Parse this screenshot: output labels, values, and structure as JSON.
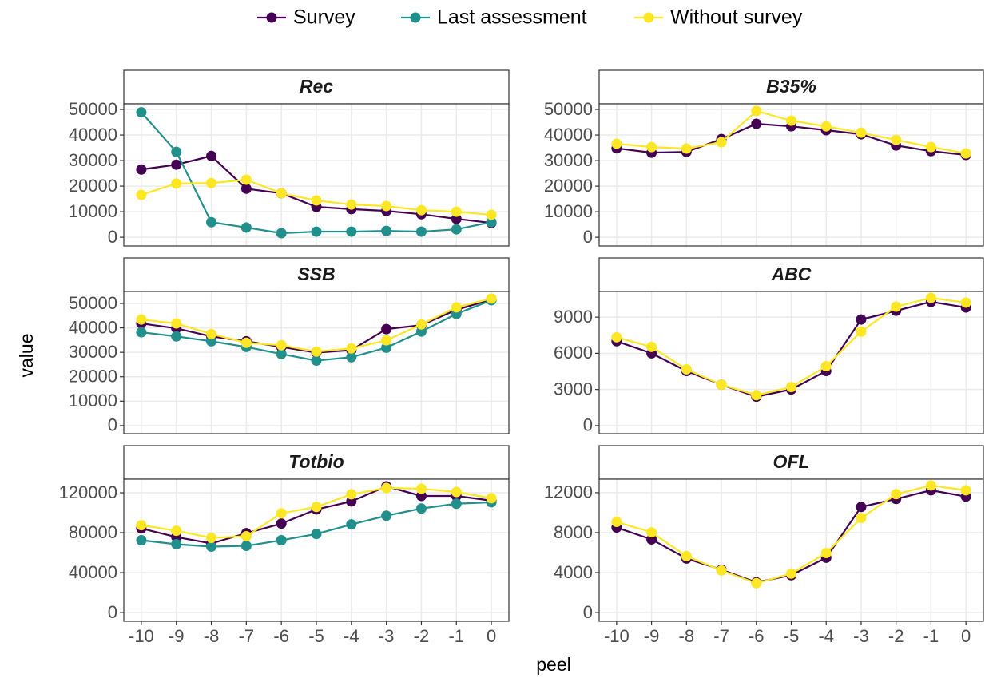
{
  "xlabel": "peel",
  "ylabel": "value",
  "chart_data": [
    {
      "type": "line",
      "title": "Rec",
      "x": [
        -10,
        -9,
        -8,
        -7,
        -6,
        -5,
        -4,
        -3,
        -2,
        -1,
        0
      ],
      "xlim": [
        -10.5,
        0.5
      ],
      "xticks": [
        -10,
        -9,
        -8,
        -7,
        -6,
        -5,
        -4,
        -3,
        -2,
        -1,
        0
      ],
      "ylim": [
        -3400,
        52200
      ],
      "yticks": [
        0,
        10000,
        20000,
        30000,
        40000,
        50000
      ],
      "grid": true,
      "series": [
        {
          "name": "Survey",
          "color": "#440154",
          "values": [
            26500,
            28400,
            31800,
            19000,
            17200,
            11900,
            11000,
            10300,
            9000,
            7200,
            5600
          ]
        },
        {
          "name": "Last assessment",
          "color": "#21908C",
          "values": [
            48900,
            33400,
            5900,
            3800,
            1600,
            2200,
            2200,
            2500,
            2200,
            3100,
            5900
          ]
        },
        {
          "name": "Without survey",
          "color": "#FDE725",
          "values": [
            16600,
            21000,
            21200,
            22500,
            17200,
            14400,
            12800,
            12200,
            10600,
            10000,
            8800
          ]
        }
      ]
    },
    {
      "type": "line",
      "title": "B35%",
      "x": [
        -10,
        -9,
        -8,
        -7,
        -6,
        -5,
        -4,
        -3,
        -2,
        -1,
        0
      ],
      "xlim": [
        -10.5,
        0.5
      ],
      "xticks": [
        -10,
        -9,
        -8,
        -7,
        -6,
        -5,
        -4,
        -3,
        -2,
        -1,
        0
      ],
      "ylim": [
        -3400,
        52200
      ],
      "yticks": [
        0,
        10000,
        20000,
        30000,
        40000,
        50000
      ],
      "grid": true,
      "series": [
        {
          "name": "Survey",
          "color": "#440154",
          "values": [
            34800,
            33100,
            33400,
            38400,
            44400,
            43400,
            41900,
            40300,
            35900,
            33700,
            32200
          ]
        },
        {
          "name": "Without survey",
          "color": "#FDE725",
          "values": [
            36600,
            35300,
            34700,
            37200,
            49400,
            45600,
            43400,
            40900,
            38100,
            35300,
            32800
          ]
        }
      ]
    },
    {
      "type": "line",
      "title": "SSB",
      "x": [
        -10,
        -9,
        -8,
        -7,
        -6,
        -5,
        -4,
        -3,
        -2,
        -1,
        0
      ],
      "xlim": [
        -10.5,
        0.5
      ],
      "xticks": [
        -10,
        -9,
        -8,
        -7,
        -6,
        -5,
        -4,
        -3,
        -2,
        -1,
        0
      ],
      "ylim": [
        -3300,
        54900
      ],
      "yticks": [
        0,
        10000,
        20000,
        30000,
        40000,
        50000
      ],
      "grid": true,
      "series": [
        {
          "name": "Survey",
          "color": "#440154",
          "values": [
            41800,
            39800,
            36500,
            34500,
            32200,
            29900,
            30900,
            39500,
            41100,
            47400,
            51600
          ]
        },
        {
          "name": "Last assessment",
          "color": "#21908C",
          "values": [
            38200,
            36500,
            34500,
            32200,
            29300,
            26600,
            28000,
            31900,
            38500,
            45700,
            51300
          ]
        },
        {
          "name": "Without survey",
          "color": "#FDE725",
          "values": [
            43400,
            41800,
            37500,
            33900,
            32900,
            30300,
            31600,
            34900,
            41400,
            48400,
            52000
          ]
        }
      ]
    },
    {
      "type": "line",
      "title": "ABC",
      "x": [
        -10,
        -9,
        -8,
        -7,
        -6,
        -5,
        -4,
        -3,
        -2,
        -1,
        0
      ],
      "xlim": [
        -10.5,
        0.5
      ],
      "xticks": [
        -10,
        -9,
        -8,
        -7,
        -6,
        -5,
        -4,
        -3,
        -2,
        -1,
        0
      ],
      "ylim": [
        -670,
        11130
      ],
      "yticks": [
        0,
        3000,
        6000,
        9000
      ],
      "grid": true,
      "series": [
        {
          "name": "Survey",
          "color": "#440154",
          "values": [
            7000,
            6000,
            4530,
            3400,
            2400,
            3000,
            4530,
            8800,
            9530,
            10270,
            9800
          ]
        },
        {
          "name": "Without survey",
          "color": "#FDE725",
          "values": [
            7330,
            6530,
            4670,
            3400,
            2530,
            3200,
            4930,
            7800,
            9870,
            10600,
            10200
          ]
        }
      ]
    },
    {
      "type": "line",
      "title": "Totbio",
      "x": [
        -10,
        -9,
        -8,
        -7,
        -6,
        -5,
        -4,
        -3,
        -2,
        -1,
        0
      ],
      "xlim": [
        -10.5,
        0.5
      ],
      "xticks": [
        -10,
        -9,
        -8,
        -7,
        -6,
        -5,
        -4,
        -3,
        -2,
        -1,
        0
      ],
      "ylim": [
        -8750,
        133600
      ],
      "yticks": [
        0,
        40000,
        80000,
        120000
      ],
      "grid": true,
      "series": [
        {
          "name": "Survey",
          "color": "#440154",
          "values": [
            84300,
            75600,
            69200,
            79500,
            89100,
            103300,
            111300,
            126400,
            116800,
            116800,
            112100
          ]
        },
        {
          "name": "Last assessment",
          "color": "#21908C",
          "values": [
            72400,
            68400,
            66000,
            66800,
            72400,
            78700,
            88300,
            97000,
            104200,
            109000,
            110500
          ]
        },
        {
          "name": "Without survey",
          "color": "#FDE725",
          "values": [
            87500,
            81900,
            74800,
            76400,
            99400,
            105800,
            118500,
            124800,
            124000,
            120800,
            114500
          ]
        }
      ]
    },
    {
      "type": "line",
      "title": "OFL",
      "x": [
        -10,
        -9,
        -8,
        -7,
        -6,
        -5,
        -4,
        -3,
        -2,
        -1,
        0
      ],
      "xlim": [
        -10.5,
        0.5
      ],
      "xticks": [
        -10,
        -9,
        -8,
        -7,
        -6,
        -5,
        -4,
        -3,
        -2,
        -1,
        0
      ],
      "ylim": [
        -875,
        13350
      ],
      "yticks": [
        0,
        4000,
        8000,
        12000
      ],
      "grid": true,
      "series": [
        {
          "name": "Survey",
          "color": "#440154",
          "values": [
            8510,
            7320,
            5410,
            4290,
            3020,
            3740,
            5490,
            10570,
            11370,
            12240,
            11610
          ]
        },
        {
          "name": "Without survey",
          "color": "#FDE725",
          "values": [
            9070,
            8030,
            5650,
            4210,
            2940,
            3900,
            5960,
            9460,
            11850,
            12720,
            12240
          ]
        }
      ]
    }
  ]
}
